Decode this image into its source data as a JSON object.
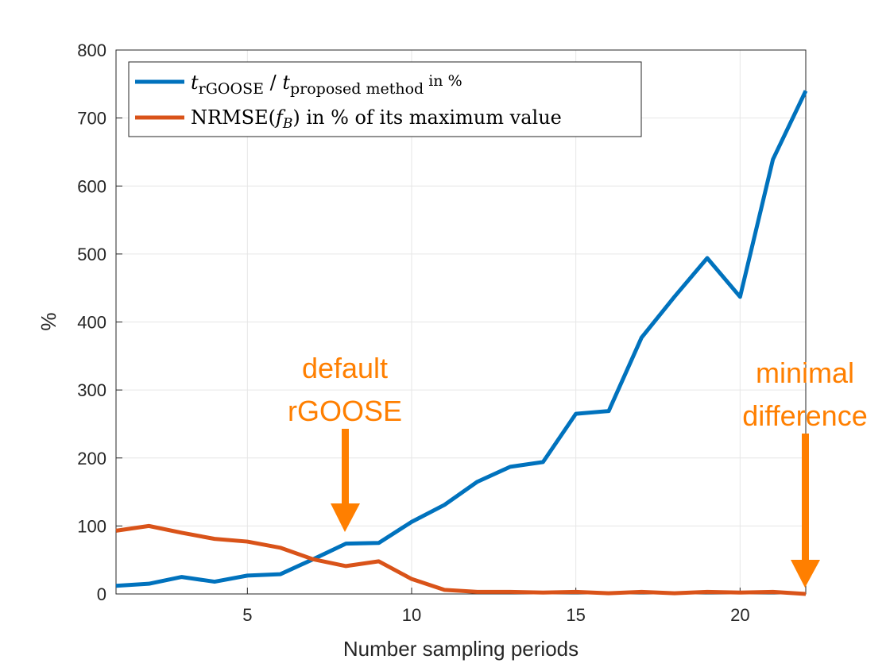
{
  "chart_data": {
    "type": "line",
    "xlabel": "Number sampling periods",
    "ylabel": "%",
    "xlim": [
      1,
      22
    ],
    "ylim": [
      0,
      800
    ],
    "xticks": [
      5,
      10,
      15,
      20
    ],
    "yticks": [
      0,
      100,
      200,
      300,
      400,
      500,
      600,
      700,
      800
    ],
    "grid": true,
    "legend_position": "top-left",
    "x": [
      1,
      2,
      3,
      4,
      5,
      6,
      7,
      8,
      9,
      10,
      11,
      12,
      13,
      14,
      15,
      16,
      17,
      18,
      19,
      20,
      21,
      22
    ],
    "series": [
      {
        "name": "t_rGOOSE / t_proposed method in %",
        "legend_parts": {
          "t1": "t",
          "sub1": "rGOOSE",
          "slash": " / ",
          "t2": "t",
          "sub2": "proposed method",
          "tail": " in %"
        },
        "color": "#0072BD",
        "values": [
          12,
          15,
          25,
          18,
          27,
          29,
          51,
          74,
          75,
          106,
          131,
          165,
          187,
          194,
          265,
          269,
          377,
          437,
          494,
          437,
          639,
          740
        ]
      },
      {
        "name": "NRMSE(f_B) in % of its maximum value",
        "legend_parts": {
          "a": "NRMSE(",
          "f": "f",
          "sub": "B",
          "b": ") in % of its maximum value"
        },
        "color": "#D95319",
        "values": [
          93,
          100,
          90,
          81,
          77,
          68,
          51,
          41,
          48,
          22,
          6,
          3,
          3,
          2,
          3,
          1,
          3,
          1,
          3,
          2,
          3,
          0
        ]
      }
    ],
    "annotations": [
      {
        "lines": [
          "default",
          "rGOOSE"
        ],
        "x": 8,
        "color": "#FF7F00"
      },
      {
        "lines": [
          "minimal",
          "difference"
        ],
        "x": 22,
        "color": "#FF7F00"
      }
    ]
  }
}
